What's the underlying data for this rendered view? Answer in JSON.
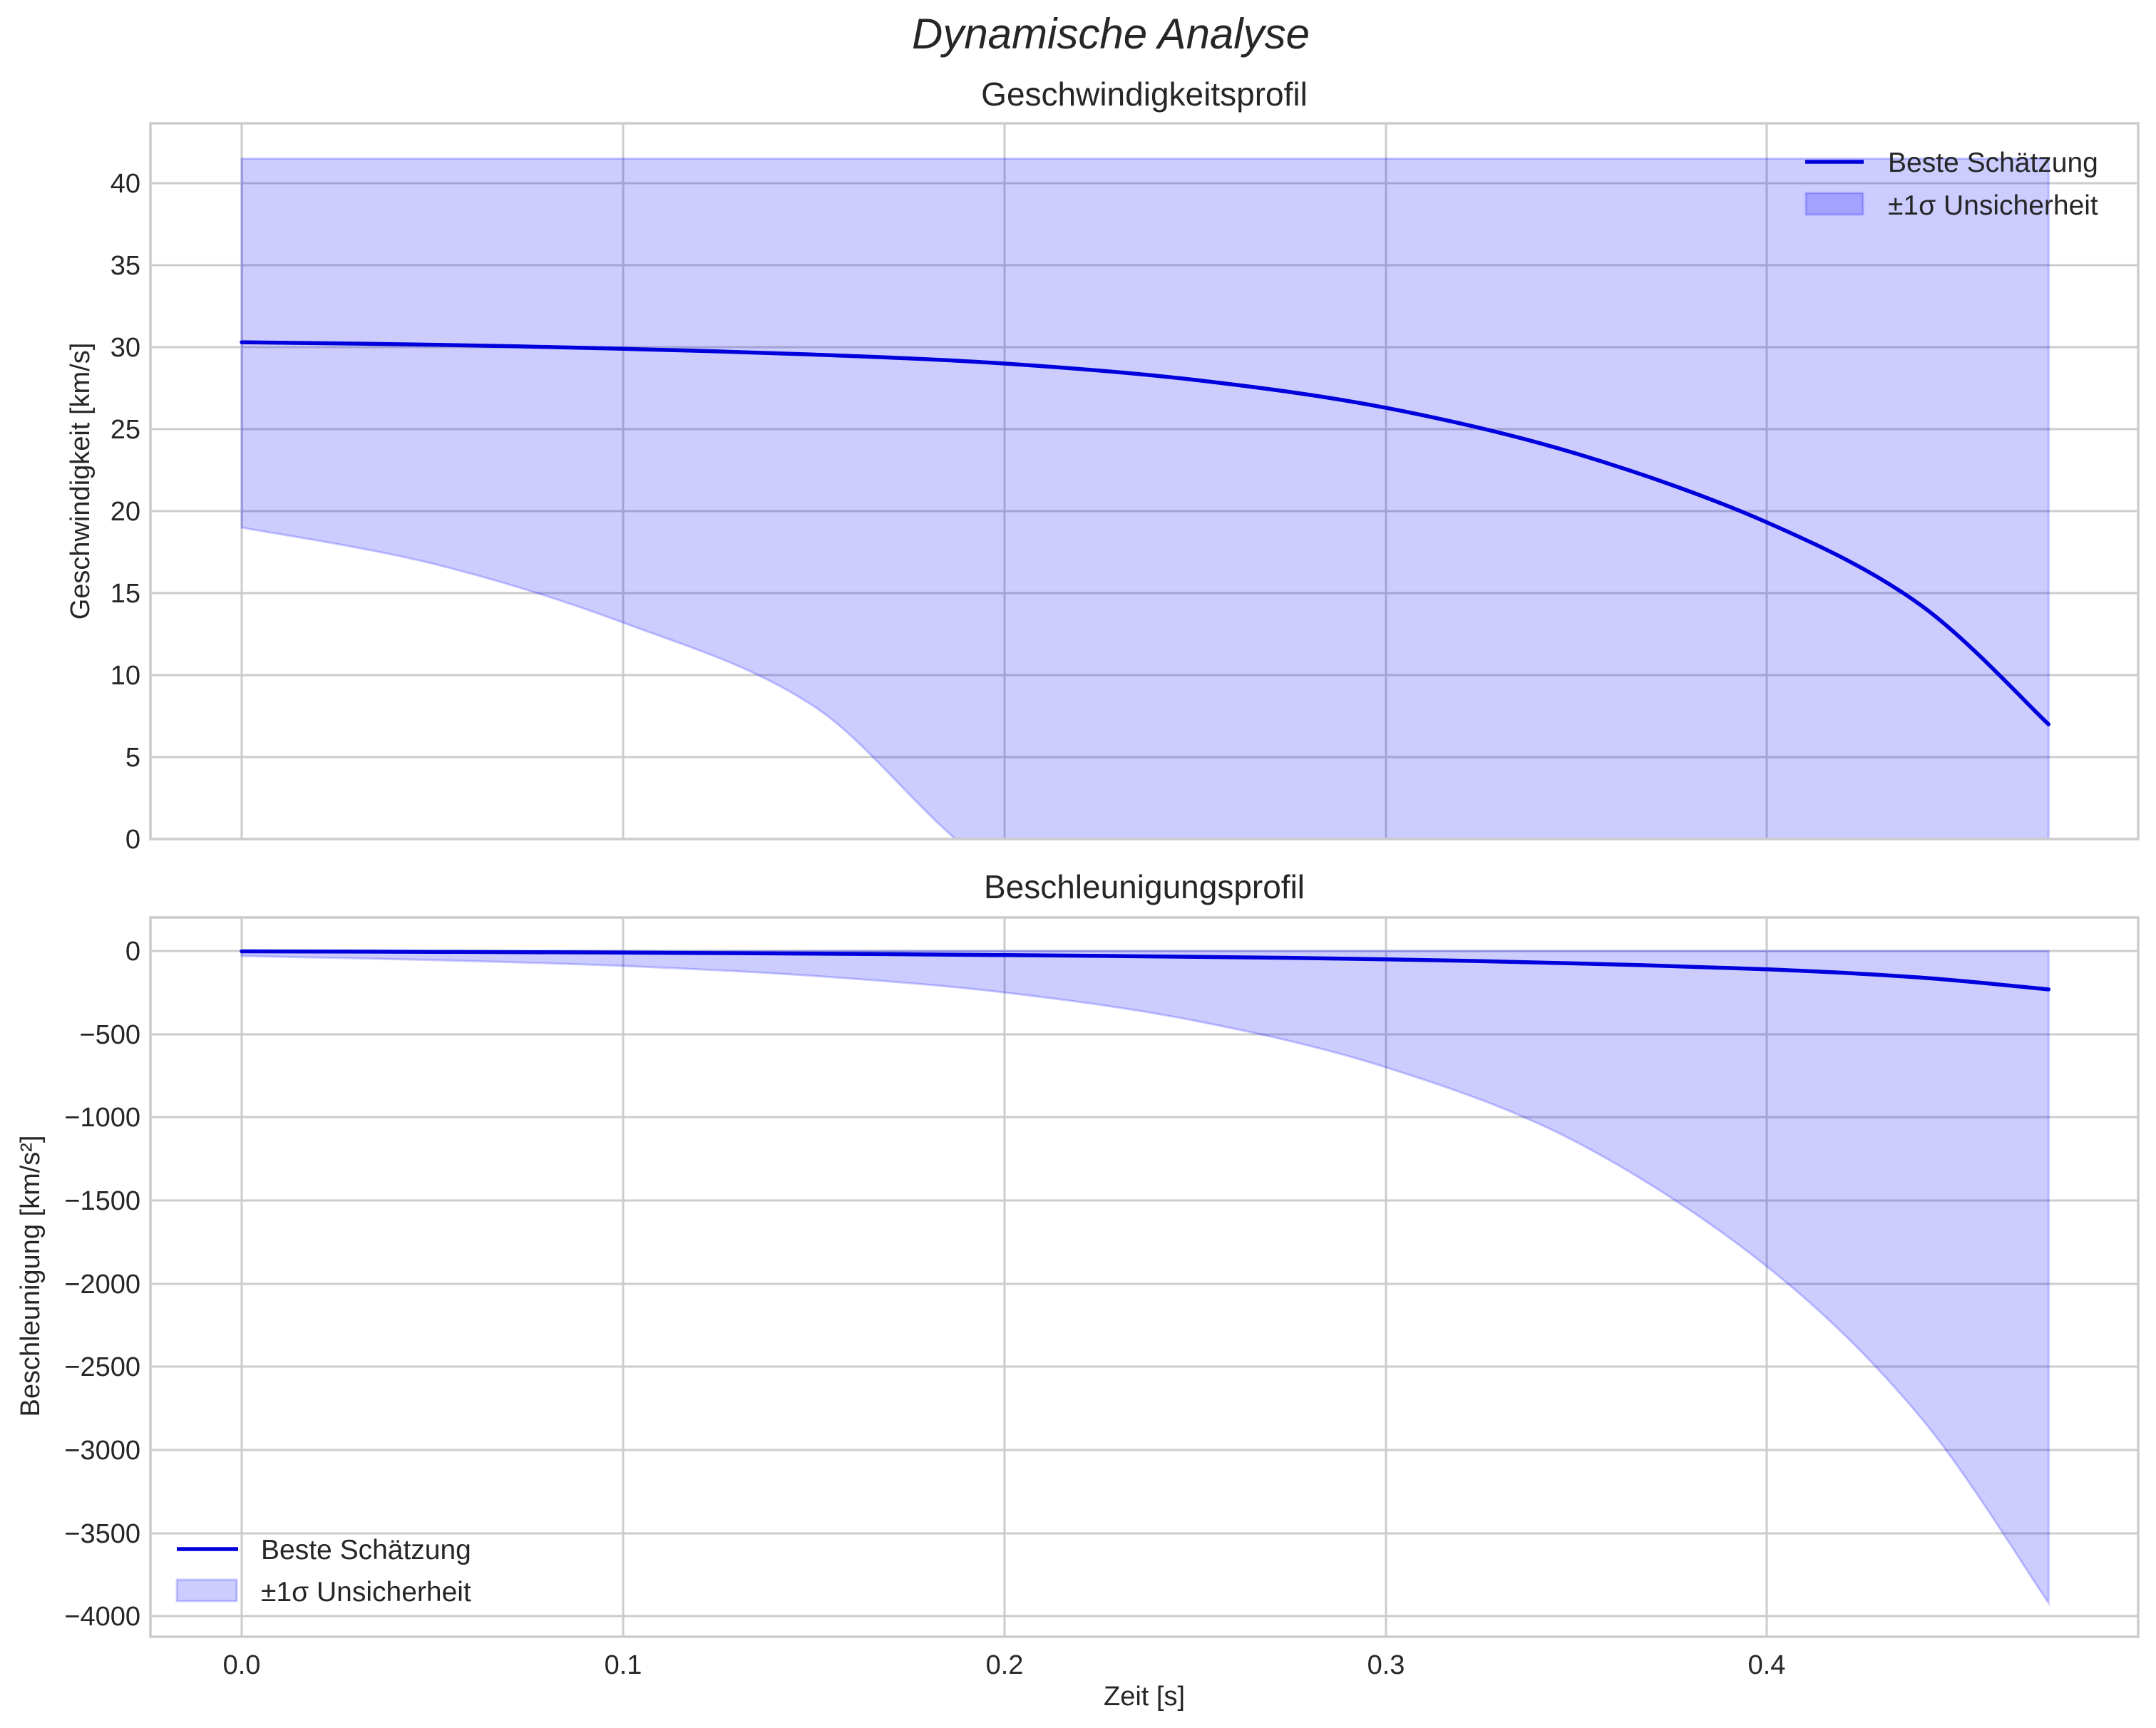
{
  "figure": {
    "title": "Dynamische Analyse"
  },
  "colors": {
    "line": "#0000dd",
    "band": "#8080ff",
    "grid": "#cccccc",
    "text": "#262626"
  },
  "chart_data": [
    {
      "type": "line",
      "title": "Geschwindigkeitsprofil",
      "xlabel": "",
      "ylabel": "Geschwindigkeit [km/s]",
      "xlim": [
        -0.024,
        0.498
      ],
      "ylim": [
        0,
        43.6
      ],
      "xticks": [
        "0.0",
        "0.1",
        "0.2",
        "0.3",
        "0.4"
      ],
      "yticks": [
        "0",
        "5",
        "10",
        "15",
        "20",
        "25",
        "30",
        "35",
        "40"
      ],
      "grid": true,
      "legend_position": "upper right",
      "x": [
        0.0,
        0.05,
        0.1,
        0.15,
        0.2,
        0.25,
        0.3,
        0.35,
        0.4,
        0.44,
        0.4737
      ],
      "series": [
        {
          "name": "Beste Schätzung",
          "kind": "line",
          "values": [
            30.3,
            30.15,
            29.9,
            29.55,
            29.0,
            28.0,
            26.3,
            23.5,
            19.3,
            14.3,
            7.0
          ]
        },
        {
          "name": "±1σ Unsicherheit (untere)",
          "kind": "band_lower",
          "values": [
            19.0,
            16.8,
            13.2,
            8.1,
            -2.0,
            -2.0,
            -2.0,
            -2.0,
            -2.0,
            -2.0,
            -2.0
          ]
        },
        {
          "name": "±1σ Unsicherheit (obere)",
          "kind": "band_upper",
          "values": [
            41.5,
            41.5,
            41.5,
            41.5,
            41.5,
            41.5,
            41.5,
            41.5,
            41.5,
            41.5,
            41.5
          ]
        }
      ],
      "legend": [
        "Beste Schätzung",
        "±1σ Unsicherheit"
      ]
    },
    {
      "type": "line",
      "title": "Beschleunigungsprofil",
      "xlabel": "Zeit [s]",
      "ylabel": "Beschleunigung [km/s²]",
      "xlim": [
        -0.024,
        0.498
      ],
      "ylim": [
        -4135,
        200
      ],
      "xticks": [
        "0.0",
        "0.1",
        "0.2",
        "0.3",
        "0.4"
      ],
      "yticks": [
        "0",
        "−500",
        "−1000",
        "−1500",
        "−2000",
        "−2500",
        "−3000",
        "−3500",
        "−4000"
      ],
      "grid": true,
      "legend_position": "lower left",
      "x": [
        0.0,
        0.05,
        0.1,
        0.15,
        0.2,
        0.25,
        0.3,
        0.35,
        0.4,
        0.44,
        0.4737
      ],
      "series": [
        {
          "name": "Beste Schätzung",
          "kind": "line",
          "values": [
            -2,
            -5,
            -10,
            -16,
            -25,
            -35,
            -50,
            -75,
            -110,
            -160,
            -231
          ]
        },
        {
          "name": "±1σ Unsicherheit (untere)",
          "kind": "band_lower",
          "values": [
            -30,
            -55,
            -90,
            -150,
            -250,
            -420,
            -700,
            -1150,
            -1900,
            -2800,
            -3920
          ]
        },
        {
          "name": "±1σ Unsicherheit (obere)",
          "kind": "band_upper",
          "values": [
            0,
            0,
            0,
            0,
            0,
            0,
            0,
            0,
            0,
            0,
            0
          ]
        }
      ],
      "legend": [
        "Beste Schätzung",
        "±1σ Unsicherheit"
      ]
    }
  ],
  "top": {
    "title": "Geschwindigkeitsprofil",
    "ylabel": "Geschwindigkeit [km/s]",
    "yticks": [
      "40",
      "35",
      "30",
      "25",
      "20",
      "15",
      "10",
      "5",
      "0"
    ],
    "legend": {
      "line": "Beste Schätzung",
      "band": "±1σ Unsicherheit"
    }
  },
  "bottom": {
    "title": "Beschleunigungsprofil",
    "ylabel": "Beschleunigung [km/s²]",
    "xlabel": "Zeit [s]",
    "xticks": [
      "0.0",
      "0.1",
      "0.2",
      "0.3",
      "0.4"
    ],
    "yticks": [
      "0",
      "−500",
      "−1000",
      "−1500",
      "−2000",
      "−2500",
      "−3000",
      "−3500",
      "−4000"
    ],
    "legend": {
      "line": "Beste Schätzung",
      "band": "±1σ Unsicherheit"
    }
  }
}
